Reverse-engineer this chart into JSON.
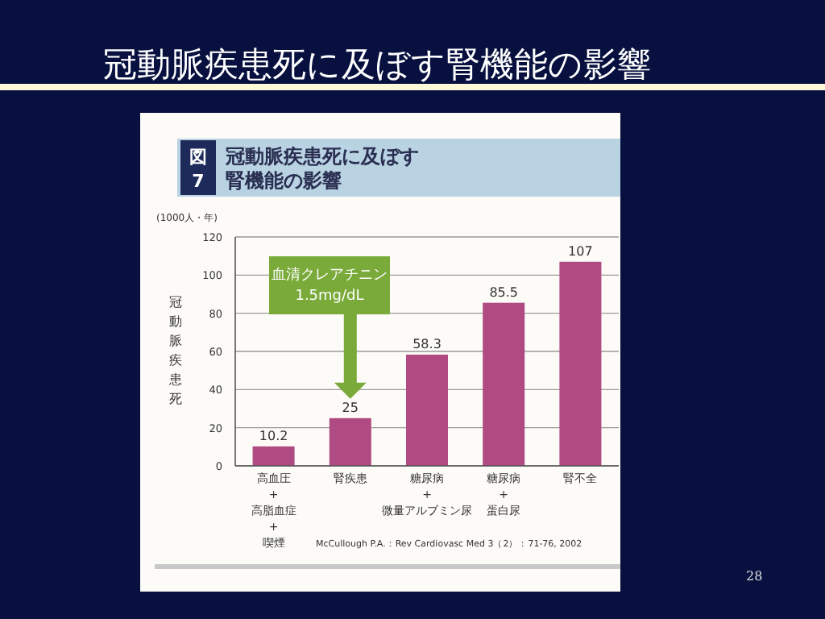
{
  "chart_data": {
    "type": "bar",
    "title": "冠動脈疾患死に及ぼす腎機能の影響",
    "subtitle": "冠動脈疾患死に及ぼす腎機能の影響",
    "ylabel": "冠動脈疾患死",
    "categories": [
      "高血圧\n+\n高脂血症\n+\n喫煙",
      "腎疾患",
      "糖尿病\n+\n微量アルブミン尿",
      "糖尿病\n+\n蛋白尿",
      "腎不全"
    ],
    "values": [
      10.2,
      25,
      58.3,
      85.5,
      107
    ],
    "color": "#b04a82",
    "data_labels": true,
    "ylim": [
      0,
      120
    ],
    "yticks": [
      0,
      20,
      40,
      60,
      80,
      100,
      120
    ],
    "grid": "y",
    "annotations": [
      "図7",
      "(1000人・年)",
      "血清クレアチニン\n1.5mg/dL",
      "McCullough P.A.：Rev Cardiovasc Med 3（2）：71-76, 2002",
      "28"
    ]
  }
}
